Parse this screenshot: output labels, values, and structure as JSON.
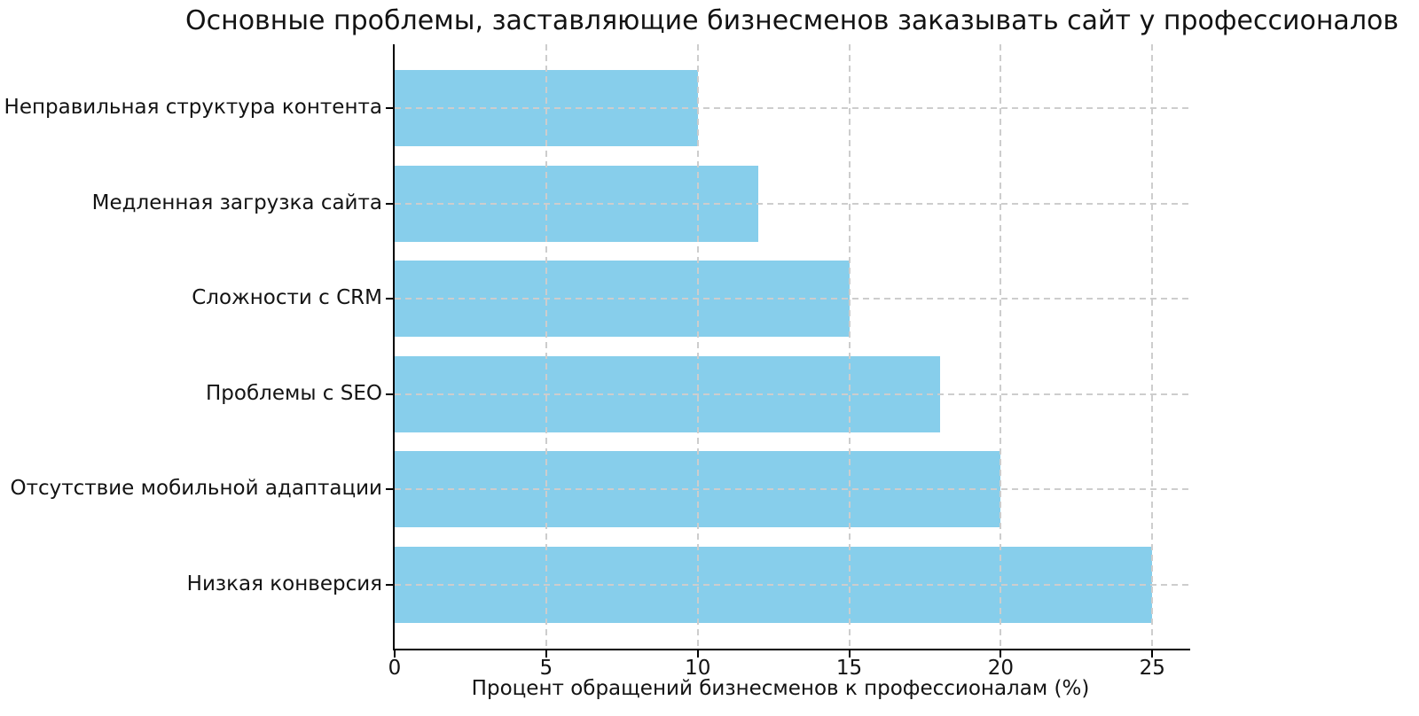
{
  "chart_data": {
    "type": "bar",
    "orientation": "horizontal",
    "title": "Основные проблемы, заставляющие бизнесменов заказывать сайт у профессионалов",
    "xlabel": "Процент обращений бизнесменов к профессионалам (%)",
    "ylabel": "",
    "categories_top_to_bottom": [
      "Неправильная структура контента",
      "Медленная загрузка сайта",
      "Сложности с CRM",
      "Проблемы с SEO",
      "Отсутствие мобильной адаптации",
      "Низкая конверсия"
    ],
    "values": [
      10,
      12,
      15,
      18,
      20,
      25
    ],
    "xticks": [
      0,
      5,
      10,
      15,
      20,
      25
    ],
    "xlim": [
      0,
      26.25
    ],
    "grid": "dashed, both axes, drawn above bars",
    "legend": "none",
    "colors": {
      "bar": "#87CEEB",
      "grid": "#cdcdcd",
      "spine": "#000000",
      "text": "#131313",
      "background": "#ffffff"
    }
  }
}
